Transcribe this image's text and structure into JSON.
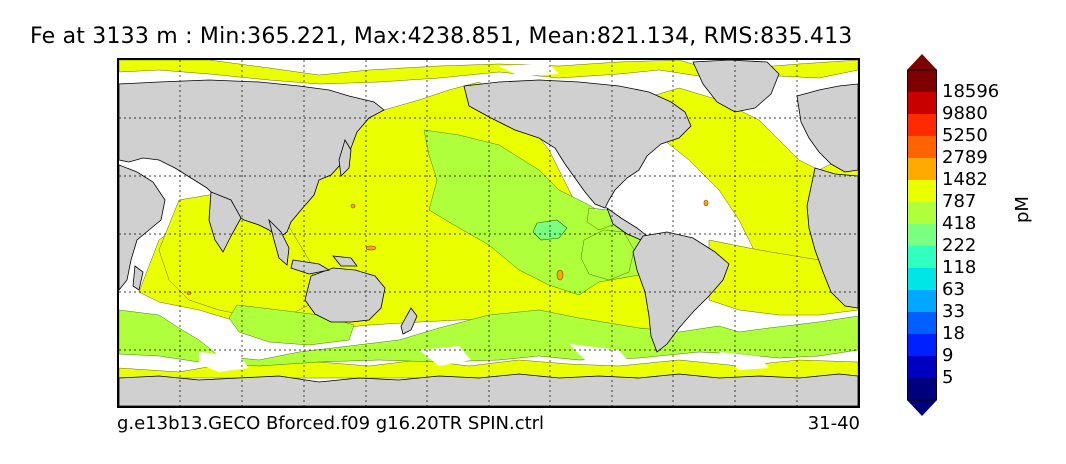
{
  "title": "Fe at 3133 m : Min:365.221, Max:4238.851, Mean:821.134, RMS:835.413",
  "footer": {
    "case_name": "g.e13b13.GECO Bforced.f09 g16.20TR SPIN.ctrl",
    "years": "31-40"
  },
  "colorbar": {
    "units": "pM",
    "levels": [
      "18596",
      "9880",
      "5250",
      "2789",
      "1482",
      "787",
      "418",
      "222",
      "118",
      "63",
      "33",
      "18",
      "9",
      "5"
    ],
    "colors": [
      "#7f0000",
      "#c80000",
      "#ff2a00",
      "#ff6400",
      "#ffaa00",
      "#eaff00",
      "#b0ff3c",
      "#7aff80",
      "#30ffc0",
      "#00e5e5",
      "#00a8ff",
      "#0060ff",
      "#0020ff",
      "#0000c0",
      "#00007f"
    ],
    "land_color": "#d0d0d0"
  }
}
